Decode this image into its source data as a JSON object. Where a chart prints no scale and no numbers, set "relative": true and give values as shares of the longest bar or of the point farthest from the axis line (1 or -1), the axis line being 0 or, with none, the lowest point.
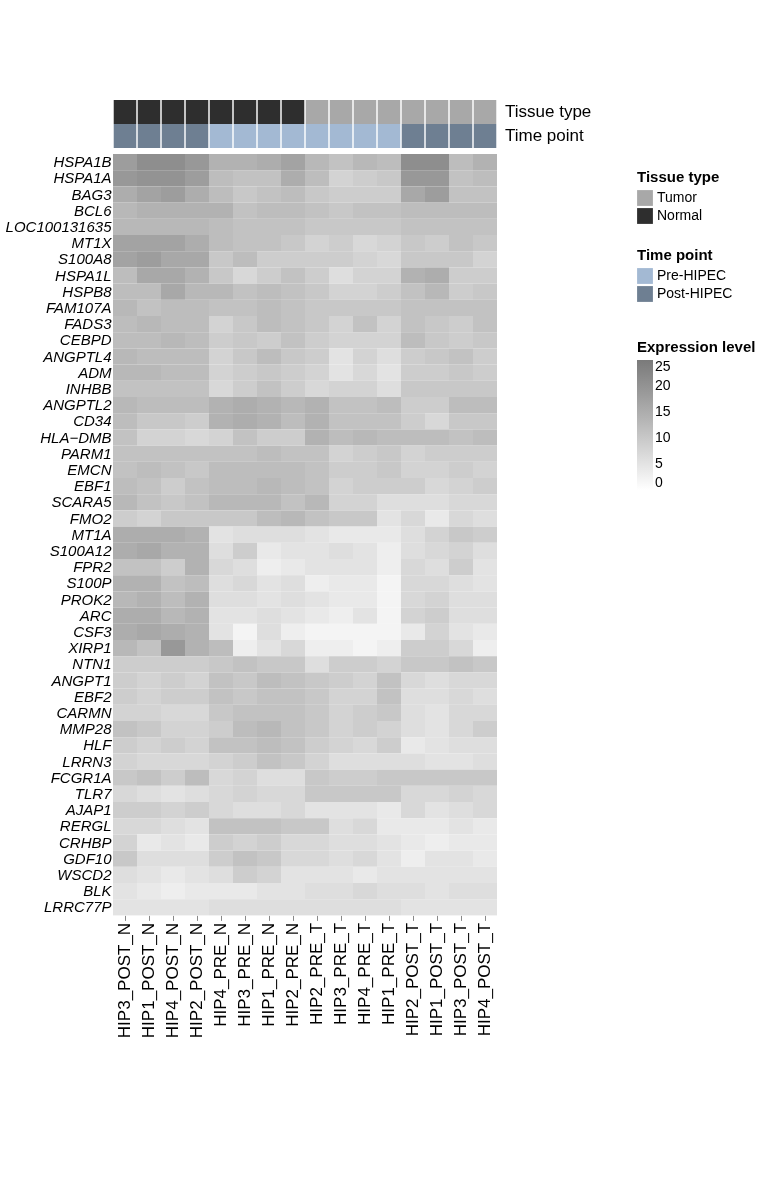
{
  "chart_data": [
    {
      "type": "bar",
      "stacked": true,
      "relative": true,
      "categories": [
        null,
        null,
        null,
        null,
        null,
        null,
        null,
        null,
        null,
        null,
        null,
        null,
        null,
        null,
        null,
        null
      ],
      "legend_title": [
        "Tissue type",
        "Time point"
      ],
      "series": [
        {
          "name": "Pre-HIPEC",
          "color": "#a3b9d3",
          "values": [
            null,
            null,
            null,
            null,
            0.5,
            0.5,
            0.5,
            0.5,
            0.5,
            0.5,
            0.5,
            0.5,
            null,
            null,
            null,
            null
          ]
        },
        {
          "name": "Post-HIPEC",
          "color": "#6e7f92",
          "values": [
            0.5,
            0.5,
            0.5,
            0.5,
            null,
            null,
            null,
            null,
            null,
            null,
            null,
            null,
            0.5,
            0.5,
            0.5,
            0.5
          ]
        },
        {
          "name": "Tumor",
          "color": "#a8a8a8",
          "values": [
            null,
            null,
            null,
            null,
            null,
            null,
            null,
            null,
            0.5,
            0.5,
            0.5,
            0.5,
            0.5,
            0.5,
            0.5,
            0.5
          ]
        },
        {
          "name": "Normal",
          "color": "#2e2e2e",
          "values": [
            0.5,
            0.5,
            0.5,
            0.5,
            0.5,
            0.5,
            0.5,
            0.5,
            null,
            null,
            null,
            null,
            null,
            null,
            null,
            null
          ]
        }
      ],
      "annotations": [
        "Tissue type",
        "Time point"
      ],
      "legend": "right"
    },
    {
      "type": "heatmap",
      "categories": [
        "HIP3_POST_N",
        "HIP1_POST_N",
        "HIP4_POST_N",
        "HIP2_POST_N",
        "HIP4_PRE_N",
        "HIP3_PRE_N",
        "HIP1_PRE_N",
        "HIP2_PRE_N",
        "HIP2_PRE_T",
        "HIP3_PRE_T",
        "HIP4_PRE_T",
        "HIP1_PRE_T",
        "HIP2_POST_T",
        "HIP1_POST_T",
        "HIP3_POST_T",
        "HIP4_POST_T"
      ],
      "y_categories": [
        "HSPA1B",
        "HSPA1A",
        "BAG3",
        "BCL6",
        "LOC100131635",
        "MT1X",
        "S100A8",
        "HSPA1L",
        "HSPB8",
        "FAM107A",
        "FADS3",
        "CEBPD",
        "ANGPTL4",
        "ADM",
        "INHBB",
        "ANGPTL2",
        "CD34",
        "HLA−DMB",
        "PARM1",
        "EMCN",
        "EBF1",
        "SCARA5",
        "FMO2",
        "MT1A",
        "S100A12",
        "FPR2",
        "S100P",
        "PROK2",
        "ARC",
        "CSF3",
        "XIRP1",
        "NTN1",
        "ANGPT1",
        "EBF2",
        "CARMN",
        "MMP28",
        "HLF",
        "LRRN3",
        "FCGR1A",
        "TLR7",
        "AJAP1",
        "RERGL",
        "CRHBP",
        "GDF10",
        "WSCD2",
        "BLK",
        "LRRC77P"
      ],
      "cells": [
        [
          18,
          21,
          21,
          19,
          14,
          14,
          15,
          17,
          13,
          11,
          13,
          12,
          21,
          21,
          12,
          14
        ],
        [
          19,
          20,
          20,
          18,
          12,
          11,
          11,
          15,
          12,
          8,
          9,
          10,
          19,
          19,
          11,
          12
        ],
        [
          15,
          17,
          18,
          15,
          12,
          10,
          11,
          12,
          10,
          9,
          9,
          9,
          16,
          18,
          11,
          11
        ],
        [
          13,
          14,
          14,
          14,
          14,
          11,
          12,
          12,
          11,
          10,
          11,
          11,
          12,
          12,
          12,
          12
        ],
        [
          13,
          13,
          13,
          13,
          12,
          11,
          11,
          11,
          10,
          10,
          10,
          10,
          11,
          11,
          11,
          11
        ],
        [
          17,
          17,
          17,
          15,
          12,
          11,
          11,
          10,
          8,
          9,
          7,
          8,
          10,
          9,
          11,
          10
        ],
        [
          17,
          18,
          16,
          16,
          10,
          12,
          9,
          9,
          9,
          9,
          8,
          7,
          10,
          10,
          10,
          8
        ],
        [
          12,
          16,
          16,
          14,
          10,
          7,
          9,
          11,
          9,
          6,
          8,
          8,
          14,
          15,
          9,
          9
        ],
        [
          12,
          12,
          16,
          13,
          13,
          11,
          12,
          11,
          10,
          8,
          8,
          9,
          11,
          13,
          9,
          10
        ],
        [
          13,
          11,
          12,
          12,
          11,
          11,
          12,
          11,
          10,
          10,
          10,
          10,
          11,
          11,
          11,
          11
        ],
        [
          12,
          13,
          12,
          12,
          8,
          10,
          12,
          11,
          10,
          8,
          11,
          8,
          11,
          10,
          9,
          11
        ],
        [
          12,
          12,
          13,
          12,
          9,
          10,
          9,
          11,
          9,
          8,
          8,
          8,
          12,
          10,
          9,
          10
        ],
        [
          13,
          12,
          12,
          12,
          8,
          10,
          12,
          10,
          9,
          5,
          8,
          6,
          9,
          10,
          11,
          9
        ],
        [
          13,
          13,
          12,
          12,
          8,
          9,
          10,
          9,
          8,
          5,
          7,
          5,
          9,
          9,
          10,
          9
        ],
        [
          11,
          11,
          11,
          11,
          7,
          9,
          11,
          9,
          7,
          8,
          8,
          6,
          10,
          10,
          10,
          10
        ],
        [
          13,
          12,
          12,
          12,
          14,
          15,
          14,
          13,
          14,
          11,
          11,
          12,
          9,
          9,
          12,
          12
        ],
        [
          12,
          10,
          10,
          9,
          14,
          15,
          14,
          12,
          14,
          11,
          11,
          11,
          9,
          7,
          10,
          10
        ],
        [
          11,
          8,
          8,
          7,
          8,
          11,
          9,
          9,
          14,
          12,
          13,
          12,
          12,
          12,
          11,
          12
        ],
        [
          11,
          11,
          11,
          11,
          11,
          11,
          12,
          11,
          11,
          8,
          9,
          10,
          8,
          9,
          9,
          9
        ],
        [
          11,
          12,
          11,
          10,
          12,
          12,
          12,
          12,
          11,
          9,
          9,
          10,
          8,
          8,
          9,
          8
        ],
        [
          12,
          11,
          9,
          11,
          12,
          12,
          13,
          12,
          11,
          8,
          9,
          9,
          9,
          7,
          8,
          9
        ],
        [
          13,
          11,
          10,
          11,
          13,
          13,
          13,
          11,
          13,
          8,
          8,
          6,
          6,
          6,
          7,
          7
        ],
        [
          9,
          8,
          10,
          10,
          10,
          10,
          12,
          13,
          11,
          10,
          10,
          5,
          7,
          4,
          7,
          6
        ],
        [
          15,
          15,
          15,
          14,
          5,
          6,
          6,
          6,
          5,
          4,
          4,
          4,
          6,
          8,
          10,
          9
        ],
        [
          15,
          16,
          14,
          14,
          6,
          9,
          4,
          5,
          5,
          6,
          5,
          3,
          6,
          7,
          8,
          6
        ],
        [
          11,
          11,
          9,
          14,
          7,
          6,
          3,
          4,
          5,
          5,
          5,
          3,
          7,
          6,
          9,
          5
        ],
        [
          14,
          14,
          11,
          12,
          6,
          7,
          5,
          6,
          3,
          4,
          4,
          2,
          7,
          7,
          6,
          5
        ],
        [
          13,
          14,
          12,
          14,
          6,
          6,
          5,
          6,
          5,
          4,
          4,
          2,
          7,
          8,
          6,
          6
        ],
        [
          15,
          15,
          13,
          14,
          5,
          5,
          6,
          5,
          4,
          3,
          5,
          2,
          8,
          9,
          6,
          6
        ],
        [
          15,
          16,
          15,
          14,
          5,
          2,
          6,
          3,
          2,
          2,
          2,
          2,
          4,
          8,
          5,
          4
        ],
        [
          13,
          11,
          19,
          14,
          12,
          3,
          5,
          7,
          3,
          3,
          2,
          3,
          9,
          9,
          7,
          3
        ],
        [
          9,
          9,
          9,
          9,
          10,
          11,
          10,
          10,
          6,
          9,
          9,
          8,
          10,
          10,
          11,
          10
        ],
        [
          9,
          8,
          9,
          8,
          11,
          10,
          12,
          11,
          10,
          9,
          8,
          11,
          7,
          6,
          7,
          7
        ],
        [
          9,
          8,
          9,
          9,
          11,
          10,
          11,
          11,
          10,
          8,
          8,
          11,
          6,
          6,
          7,
          6
        ],
        [
          8,
          8,
          7,
          7,
          10,
          11,
          11,
          11,
          10,
          8,
          9,
          10,
          6,
          5,
          7,
          7
        ],
        [
          11,
          10,
          8,
          8,
          9,
          12,
          13,
          11,
          10,
          8,
          9,
          8,
          6,
          5,
          7,
          9
        ],
        [
          9,
          8,
          9,
          8,
          11,
          11,
          12,
          11,
          9,
          8,
          7,
          9,
          4,
          5,
          6,
          6
        ],
        [
          8,
          7,
          7,
          7,
          8,
          9,
          11,
          10,
          8,
          6,
          6,
          6,
          6,
          5,
          5,
          6
        ],
        [
          10,
          11,
          9,
          12,
          7,
          8,
          6,
          6,
          10,
          9,
          9,
          10,
          10,
          10,
          10,
          10
        ],
        [
          7,
          6,
          5,
          6,
          7,
          8,
          7,
          7,
          10,
          10,
          10,
          10,
          7,
          7,
          8,
          7
        ],
        [
          9,
          9,
          8,
          9,
          7,
          6,
          6,
          7,
          5,
          5,
          5,
          4,
          7,
          5,
          6,
          7
        ],
        [
          7,
          7,
          6,
          5,
          11,
          11,
          11,
          10,
          10,
          6,
          7,
          4,
          4,
          4,
          5,
          4
        ],
        [
          8,
          4,
          5,
          4,
          9,
          8,
          9,
          7,
          7,
          6,
          6,
          5,
          4,
          3,
          4,
          4
        ],
        [
          10,
          6,
          6,
          6,
          9,
          11,
          10,
          7,
          7,
          6,
          7,
          5,
          3,
          5,
          5,
          4
        ],
        [
          6,
          5,
          4,
          5,
          6,
          9,
          8,
          5,
          5,
          5,
          4,
          5,
          5,
          5,
          5,
          5
        ],
        [
          5,
          4,
          3,
          4,
          4,
          4,
          5,
          5,
          6,
          6,
          7,
          6,
          6,
          5,
          6,
          6
        ],
        [
          5,
          5,
          5,
          5,
          6,
          6,
          6,
          6,
          6,
          6,
          6,
          6,
          5,
          5,
          5,
          5
        ]
      ],
      "clim": [
        0,
        25
      ],
      "cticks": [
        0,
        5,
        10,
        15,
        20,
        25
      ],
      "clabel": "Expression level"
    }
  ]
}
